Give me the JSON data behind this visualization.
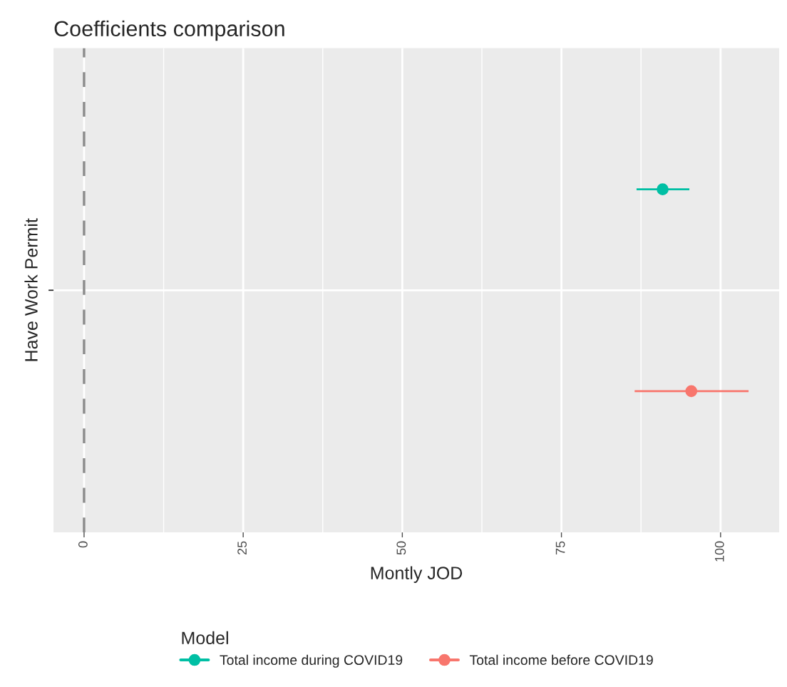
{
  "chart_data": {
    "type": "scatter",
    "orientation": "horizontal",
    "title": "Coefficients comparison",
    "xlabel": "Montly JOD",
    "ylabel": "Have Work Permit",
    "legend_title": "Model",
    "categories": [
      null
    ],
    "series": [
      {
        "name": "Total income during COVID19",
        "color": "#00bfa4",
        "values": [
          90.9
        ],
        "errors": [
          [
            86.8,
            95.1
          ]
        ]
      },
      {
        "name": "Total income before COVID19",
        "color": "#f8766d",
        "values": [
          95.4
        ],
        "errors": [
          [
            86.5,
            104.4
          ]
        ]
      }
    ],
    "xlim": [
      -4.8,
      109.2
    ],
    "xticks": [
      0,
      25,
      50,
      75,
      100
    ],
    "ref_lines": [
      {
        "axis": "x",
        "value": 0,
        "color": "#8c8c8c",
        "line_style": "dashed"
      }
    ],
    "grid": true,
    "legend": "bottom",
    "marker": "circle"
  }
}
